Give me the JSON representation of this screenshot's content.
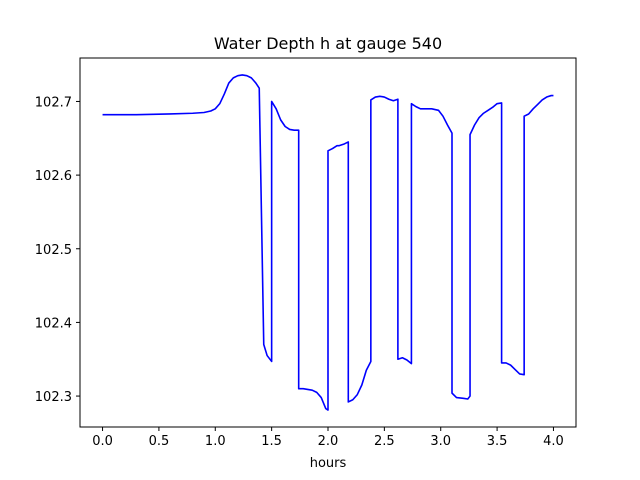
{
  "chart_data": {
    "type": "line",
    "title": "Water Depth h at gauge 540",
    "xlabel": "hours",
    "ylabel": "",
    "xlim": [
      -0.2,
      4.2
    ],
    "ylim": [
      102.258,
      102.759
    ],
    "xticks": [
      0.0,
      0.5,
      1.0,
      1.5,
      2.0,
      2.5,
      3.0,
      3.5,
      4.0
    ],
    "xtick_labels": [
      "0.0",
      "0.5",
      "1.0",
      "1.5",
      "2.0",
      "2.5",
      "3.0",
      "3.5",
      "4.0"
    ],
    "yticks": [
      102.3,
      102.4,
      102.5,
      102.6,
      102.7
    ],
    "ytick_labels": [
      "102.3",
      "102.4",
      "102.5",
      "102.6",
      "102.7"
    ],
    "grid": false,
    "series": [
      {
        "color": "#0000ff",
        "x": [
          0.0,
          0.3,
          0.6,
          0.8,
          0.9,
          0.96,
          1.0,
          1.04,
          1.08,
          1.12,
          1.16,
          1.2,
          1.24,
          1.28,
          1.32,
          1.36,
          1.39,
          1.43,
          1.43,
          1.46,
          1.5,
          1.5,
          1.54,
          1.58,
          1.62,
          1.66,
          1.7,
          1.74,
          1.74,
          1.78,
          1.82,
          1.86,
          1.9,
          1.94,
          1.98,
          2.0,
          2.0,
          2.04,
          2.08,
          2.1,
          2.14,
          2.18,
          2.18,
          2.22,
          2.26,
          2.3,
          2.34,
          2.38,
          2.38,
          2.42,
          2.46,
          2.5,
          2.54,
          2.58,
          2.62,
          2.62,
          2.66,
          2.7,
          2.74,
          2.74,
          2.78,
          2.82,
          2.86,
          2.92,
          2.98,
          3.02,
          3.06,
          3.1,
          3.1,
          3.14,
          3.2,
          3.24,
          3.26,
          3.26,
          3.3,
          3.34,
          3.38,
          3.42,
          3.46,
          3.5,
          3.54,
          3.54,
          3.58,
          3.62,
          3.66,
          3.7,
          3.74,
          3.74,
          3.78,
          3.82,
          3.86,
          3.9,
          3.94,
          3.98,
          4.0
        ],
        "y": [
          102.682,
          102.682,
          102.683,
          102.684,
          102.685,
          102.687,
          102.69,
          102.697,
          102.71,
          102.725,
          102.732,
          102.735,
          102.736,
          102.735,
          102.732,
          102.725,
          102.718,
          102.37,
          102.37,
          102.355,
          102.347,
          102.7,
          102.69,
          102.675,
          102.666,
          102.662,
          102.661,
          102.661,
          102.31,
          102.31,
          102.309,
          102.308,
          102.305,
          102.298,
          102.283,
          102.281,
          102.633,
          102.636,
          102.64,
          102.64,
          102.642,
          102.645,
          102.292,
          102.295,
          102.302,
          102.315,
          102.335,
          102.347,
          102.702,
          102.706,
          102.707,
          102.706,
          102.703,
          102.701,
          102.703,
          102.35,
          102.352,
          102.349,
          102.344,
          102.697,
          102.693,
          102.69,
          102.69,
          102.69,
          102.688,
          102.68,
          102.668,
          102.657,
          102.304,
          102.298,
          102.297,
          102.296,
          102.3,
          102.655,
          102.668,
          102.678,
          102.684,
          102.688,
          102.692,
          102.697,
          102.698,
          102.345,
          102.345,
          102.342,
          102.336,
          102.33,
          102.329,
          102.68,
          102.683,
          102.69,
          102.696,
          102.702,
          102.706,
          102.708,
          102.708
        ]
      }
    ]
  }
}
